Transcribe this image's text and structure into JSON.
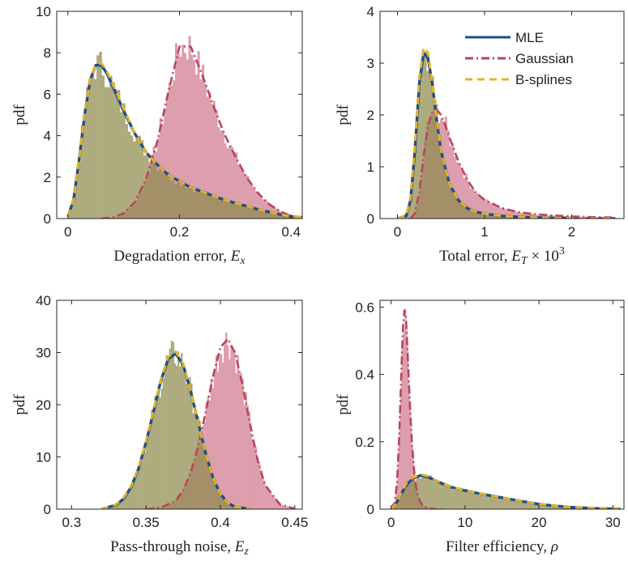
{
  "colors": {
    "mle": "#1f4e8c",
    "gaussian": "#b8455e",
    "bsplines": "#e3b325",
    "hist_gaussian": "#c9647b",
    "hist_mle": "#8f8c4e"
  },
  "legend": {
    "location": "top-right of panel 2",
    "entries": [
      {
        "label": "MLE",
        "style": "solid",
        "color": "#1f4e8c"
      },
      {
        "label": "Gaussian",
        "style": "dash-dot",
        "color": "#b8455e"
      },
      {
        "label": "B-splines",
        "style": "dashed",
        "color": "#e3b325"
      }
    ]
  },
  "chart_data": [
    {
      "type": "area",
      "ylabel": "pdf",
      "xlabel_text": "Degradation error, ",
      "xlabel_sym": "E",
      "xlabel_sub": "x",
      "xlim": [
        -0.02,
        0.42
      ],
      "ylim": [
        0,
        10
      ],
      "xticks": [
        0,
        0.2,
        0.4
      ],
      "xtick_labels": [
        "0",
        "0.2",
        "0.4"
      ],
      "yticks": [
        0,
        2,
        4,
        6,
        8,
        10
      ],
      "ytick_labels": [
        "0",
        "2",
        "4",
        "6",
        "8",
        "10"
      ],
      "grid": false,
      "series": [
        {
          "style": "mle",
          "x": [
            0.0,
            0.01,
            0.02,
            0.03,
            0.04,
            0.05,
            0.06,
            0.07,
            0.08,
            0.1,
            0.12,
            0.14,
            0.16,
            0.18,
            0.2,
            0.22,
            0.24,
            0.26,
            0.28,
            0.3,
            0.32,
            0.34,
            0.36,
            0.38,
            0.4,
            0.42
          ],
          "y": [
            0.1,
            0.9,
            2.8,
            5.0,
            6.7,
            7.4,
            7.4,
            7.0,
            6.4,
            5.2,
            4.1,
            3.2,
            2.6,
            2.1,
            1.8,
            1.5,
            1.3,
            1.1,
            0.9,
            0.75,
            0.6,
            0.45,
            0.32,
            0.2,
            0.1,
            0.05
          ]
        },
        {
          "style": "gaussian",
          "x": [
            0.06,
            0.08,
            0.1,
            0.12,
            0.14,
            0.16,
            0.18,
            0.2,
            0.22,
            0.24,
            0.26,
            0.28,
            0.3,
            0.32,
            0.34,
            0.36,
            0.38,
            0.4,
            0.42
          ],
          "y": [
            0.0,
            0.05,
            0.25,
            0.8,
            1.9,
            3.7,
            6.1,
            8.3,
            8.3,
            7.0,
            5.5,
            4.1,
            3.0,
            2.0,
            1.25,
            0.7,
            0.35,
            0.12,
            0.03
          ]
        },
        {
          "style": "bsplines",
          "x": [
            0.0,
            0.01,
            0.02,
            0.03,
            0.04,
            0.05,
            0.06,
            0.07,
            0.08,
            0.1,
            0.12,
            0.14,
            0.16,
            0.18,
            0.2,
            0.22,
            0.24,
            0.26,
            0.28,
            0.3,
            0.32,
            0.34,
            0.36,
            0.38,
            0.4,
            0.42
          ],
          "y": [
            0.1,
            0.9,
            2.8,
            5.0,
            6.7,
            7.4,
            7.5,
            7.1,
            6.5,
            5.3,
            4.1,
            3.2,
            2.6,
            2.1,
            1.8,
            1.5,
            1.3,
            1.1,
            0.9,
            0.75,
            0.6,
            0.45,
            0.32,
            0.2,
            0.1,
            0.05
          ]
        }
      ]
    },
    {
      "type": "area",
      "ylabel": "pdf",
      "xlabel_text": "Total error, ",
      "xlabel_sym": "E",
      "xlabel_sub": "T",
      "xlabel_suffix": " × 10",
      "xlabel_sup": "3",
      "xlim": [
        -0.2,
        2.6
      ],
      "ylim": [
        0,
        4
      ],
      "xticks": [
        0,
        1,
        2
      ],
      "xtick_labels": [
        "0",
        "1",
        "2"
      ],
      "yticks": [
        0,
        1,
        2,
        3,
        4
      ],
      "ytick_labels": [
        "0",
        "1",
        "2",
        "3",
        "4"
      ],
      "grid": false,
      "series": [
        {
          "style": "mle",
          "x": [
            0.0,
            0.1,
            0.15,
            0.2,
            0.25,
            0.3,
            0.35,
            0.4,
            0.45,
            0.5,
            0.6,
            0.7,
            0.8,
            0.9,
            1.0,
            1.2,
            1.4,
            1.6,
            1.8,
            2.0,
            2.2,
            2.5
          ],
          "y": [
            0.0,
            0.05,
            0.35,
            1.3,
            2.6,
            3.2,
            3.1,
            2.6,
            1.9,
            1.3,
            0.65,
            0.35,
            0.2,
            0.13,
            0.09,
            0.05,
            0.03,
            0.02,
            0.01,
            0.01,
            0.0,
            0.0
          ]
        },
        {
          "style": "gaussian",
          "x": [
            0.15,
            0.2,
            0.25,
            0.3,
            0.35,
            0.4,
            0.45,
            0.5,
            0.55,
            0.6,
            0.7,
            0.8,
            0.9,
            1.0,
            1.2,
            1.4,
            1.6,
            1.8,
            2.0,
            2.2,
            2.5
          ],
          "y": [
            0.0,
            0.1,
            0.5,
            1.2,
            1.8,
            2.05,
            2.1,
            2.0,
            1.8,
            1.55,
            1.1,
            0.75,
            0.5,
            0.36,
            0.2,
            0.12,
            0.08,
            0.06,
            0.04,
            0.03,
            0.02
          ]
        },
        {
          "style": "bsplines",
          "x": [
            0.0,
            0.1,
            0.15,
            0.2,
            0.25,
            0.3,
            0.35,
            0.4,
            0.45,
            0.5,
            0.6,
            0.7,
            0.8,
            0.9,
            1.0,
            1.2,
            1.4,
            1.6,
            1.8,
            2.0,
            2.2,
            2.5
          ],
          "y": [
            0.0,
            0.05,
            0.4,
            1.4,
            2.7,
            3.3,
            3.2,
            2.6,
            1.9,
            1.3,
            0.65,
            0.35,
            0.2,
            0.13,
            0.09,
            0.05,
            0.03,
            0.02,
            0.01,
            0.01,
            0.0,
            0.0
          ]
        }
      ]
    },
    {
      "type": "area",
      "ylabel": "pdf",
      "xlabel_text": "Pass-through noise, ",
      "xlabel_sym": "E",
      "xlabel_sub": "z",
      "xlim": [
        0.29,
        0.455
      ],
      "ylim": [
        0,
        40
      ],
      "xticks": [
        0.3,
        0.35,
        0.4,
        0.45
      ],
      "xtick_labels": [
        "0.3",
        "0.35",
        "0.4",
        "0.45"
      ],
      "yticks": [
        0,
        10,
        20,
        30,
        40
      ],
      "ytick_labels": [
        "0",
        "10",
        "20",
        "30",
        "40"
      ],
      "grid": false,
      "series": [
        {
          "style": "mle",
          "x": [
            0.32,
            0.33,
            0.335,
            0.34,
            0.345,
            0.35,
            0.355,
            0.36,
            0.365,
            0.37,
            0.375,
            0.38,
            0.385,
            0.39,
            0.395,
            0.4,
            0.405,
            0.41,
            0.42
          ],
          "y": [
            0.0,
            0.8,
            2.0,
            4.2,
            7.8,
            12.8,
            18.6,
            24.6,
            28.8,
            29.8,
            27.6,
            22.6,
            16.6,
            10.8,
            6.0,
            2.9,
            1.2,
            0.4,
            0.05
          ]
        },
        {
          "style": "gaussian",
          "x": [
            0.35,
            0.36,
            0.37,
            0.375,
            0.38,
            0.385,
            0.39,
            0.395,
            0.4,
            0.405,
            0.41,
            0.415,
            0.42,
            0.425,
            0.43,
            0.44,
            0.45
          ],
          "y": [
            0.0,
            0.3,
            1.6,
            3.6,
            7.0,
            12.0,
            18.4,
            25.4,
            31.0,
            32.6,
            29.8,
            23.6,
            16.2,
            9.4,
            4.6,
            0.9,
            0.1
          ]
        },
        {
          "style": "bsplines",
          "x": [
            0.32,
            0.33,
            0.335,
            0.34,
            0.345,
            0.35,
            0.355,
            0.36,
            0.365,
            0.37,
            0.375,
            0.38,
            0.385,
            0.39,
            0.395,
            0.4,
            0.405,
            0.41,
            0.42
          ],
          "y": [
            0.0,
            0.9,
            2.2,
            4.4,
            8.0,
            13.0,
            18.8,
            24.8,
            29.2,
            30.2,
            27.8,
            22.6,
            16.6,
            10.8,
            6.0,
            2.9,
            1.2,
            0.4,
            0.05
          ]
        }
      ]
    },
    {
      "type": "area",
      "ylabel": "pdf",
      "xlabel_text": "Filter efficiency, ",
      "xlabel_sym": "ρ",
      "xlim": [
        -1.5,
        31.5
      ],
      "ylim": [
        0,
        0.62
      ],
      "xticks": [
        0,
        10,
        20,
        30
      ],
      "xtick_labels": [
        "0",
        "10",
        "20",
        "30"
      ],
      "yticks": [
        0,
        0.2,
        0.4,
        0.6
      ],
      "ytick_labels": [
        "0",
        "0.2",
        "0.4",
        "0.6"
      ],
      "grid": false,
      "series": [
        {
          "style": "mle",
          "x": [
            0,
            0.5,
            1,
            2,
            3,
            4,
            5,
            6,
            7,
            8,
            10,
            12,
            14,
            16,
            18,
            20,
            22,
            24,
            26,
            28,
            30,
            31
          ],
          "y": [
            0.0,
            0.01,
            0.03,
            0.07,
            0.092,
            0.1,
            0.095,
            0.085,
            0.075,
            0.066,
            0.055,
            0.046,
            0.038,
            0.03,
            0.022,
            0.015,
            0.01,
            0.006,
            0.004,
            0.002,
            0.001,
            0.001
          ]
        },
        {
          "style": "gaussian",
          "x": [
            0,
            0.5,
            0.8,
            1.1,
            1.4,
            1.6,
            1.8,
            2.0,
            2.2,
            2.5,
            2.8,
            3.2,
            3.6,
            4.0,
            4.5,
            5,
            6,
            7
          ],
          "y": [
            0.0,
            0.02,
            0.08,
            0.22,
            0.42,
            0.54,
            0.59,
            0.57,
            0.48,
            0.33,
            0.2,
            0.09,
            0.04,
            0.018,
            0.008,
            0.003,
            0.0,
            0.0
          ]
        },
        {
          "style": "bsplines",
          "x": [
            0,
            0.5,
            1,
            2,
            3,
            4,
            5,
            6,
            7,
            8,
            10,
            12,
            14,
            16,
            18,
            20,
            22,
            24,
            26,
            28,
            30,
            31
          ],
          "y": [
            0.0,
            0.01,
            0.03,
            0.075,
            0.095,
            0.103,
            0.098,
            0.086,
            0.075,
            0.066,
            0.055,
            0.046,
            0.038,
            0.03,
            0.022,
            0.015,
            0.01,
            0.006,
            0.004,
            0.002,
            0.001,
            0.001
          ]
        }
      ]
    }
  ]
}
